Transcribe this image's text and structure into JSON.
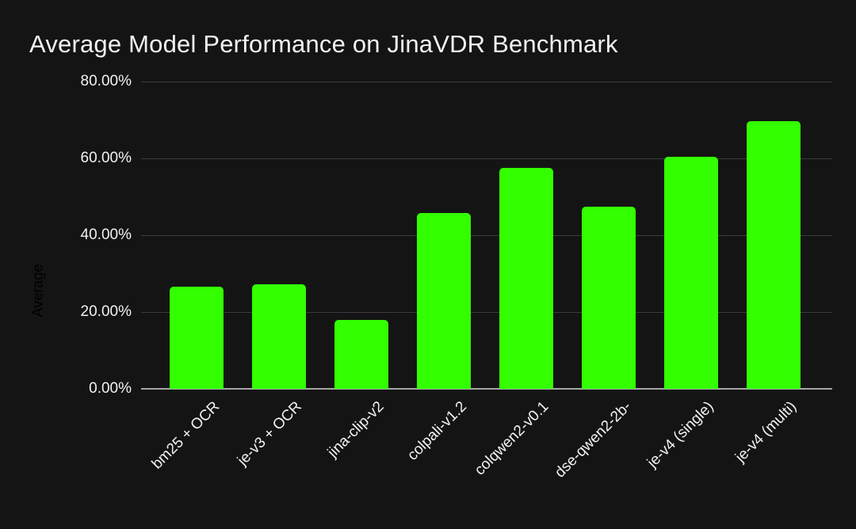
{
  "chart_data": {
    "type": "bar",
    "title": "Average Model Performance on JinaVDR Benchmark",
    "xlabel": "",
    "ylabel": "Average",
    "categories": [
      "bm25 + OCR",
      "je-v3 + OCR",
      "jina-clip-v2",
      "colpali-v1.2",
      "colqwen2-v0.1",
      "dse-qwen2-2b-",
      "je-v4 (single)",
      "je-v4 (multi)"
    ],
    "values": [
      26.5,
      27.3,
      17.9,
      45.7,
      57.5,
      47.4,
      60.4,
      69.6
    ],
    "ylim": [
      0,
      80
    ],
    "y_ticks": [
      {
        "value": 0,
        "label": "0.00%"
      },
      {
        "value": 20,
        "label": "20.00%"
      },
      {
        "value": 40,
        "label": "40.00%"
      },
      {
        "value": 60,
        "label": "60.00%"
      },
      {
        "value": 80,
        "label": "80.00%"
      }
    ],
    "grid": true,
    "legend": "none",
    "colors": {
      "background": "#141414",
      "bar": "#33FF00",
      "gridline": "#3C3C3C",
      "baseline": "#A6A6A6",
      "text": "#F2F2F2",
      "axis_title": "#000000"
    }
  }
}
